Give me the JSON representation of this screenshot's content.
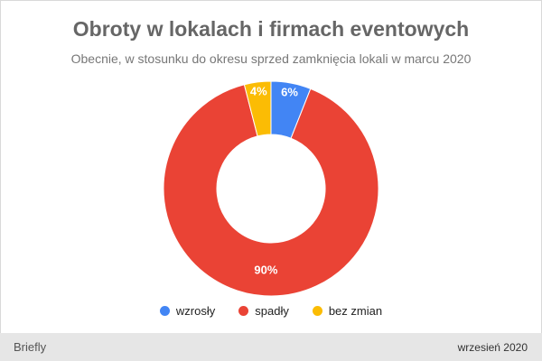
{
  "chart_data": {
    "type": "pie",
    "title": "Obroty w lokalach i firmach eventowych",
    "subtitle": "Obecnie, w stosunku do okresu sprzed zamknięcia lokali w marcu 2020",
    "categories": [
      "wzrosły",
      "spadły",
      "bez zmian"
    ],
    "values": [
      6,
      90,
      4
    ],
    "data_labels": [
      "6%",
      "90%",
      "4%"
    ],
    "colors": [
      "#4285f4",
      "#ea4335",
      "#fbbc04"
    ],
    "donut": true,
    "legend_position": "bottom"
  },
  "footer": {
    "brand": "Briefly",
    "date": "wrzesień 2020"
  }
}
